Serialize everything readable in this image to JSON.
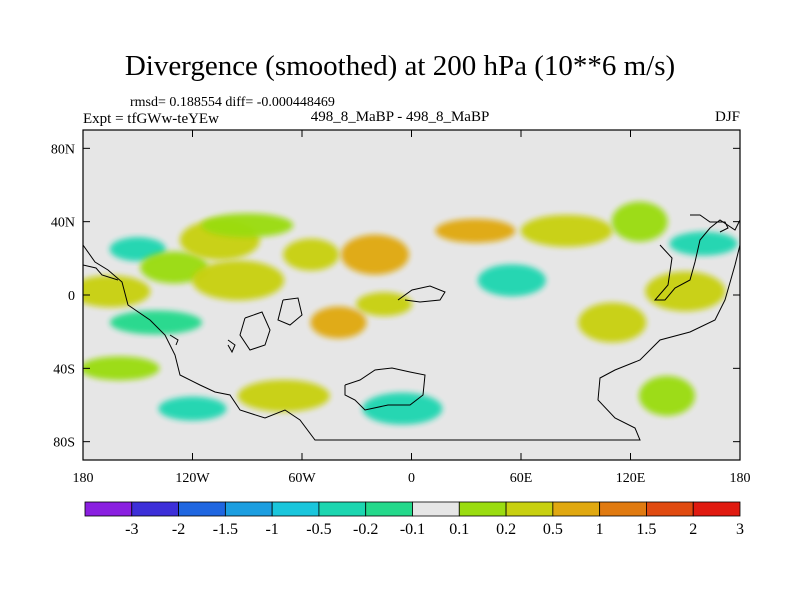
{
  "header": {
    "title": "Divergence (smoothed) at 200 hPa (10**6 m/s)",
    "stats": "rmsd= 0.188554 diff= -0.000448469",
    "experiment": "Expt = tfGWw-teYEw",
    "case": "498_8_MaBP - 498_8_MaBP",
    "season": "DJF"
  },
  "chart_data": {
    "type": "heatmap",
    "title": "Divergence (smoothed) at 200 hPa (10**6 m/s)",
    "projection": "cylindrical-equidistant",
    "xlim": [
      -180,
      180
    ],
    "ylim": [
      -90,
      90
    ],
    "x_ticks": [
      {
        "value": -180,
        "label": "180"
      },
      {
        "value": -120,
        "label": "120W"
      },
      {
        "value": -60,
        "label": "60W"
      },
      {
        "value": 0,
        "label": "0"
      },
      {
        "value": 60,
        "label": "60E"
      },
      {
        "value": 120,
        "label": "120E"
      },
      {
        "value": 180,
        "label": "180"
      }
    ],
    "y_ticks": [
      {
        "value": 80,
        "label": "80N"
      },
      {
        "value": 40,
        "label": "40N"
      },
      {
        "value": 0,
        "label": "0"
      },
      {
        "value": -40,
        "label": "40S"
      },
      {
        "value": -80,
        "label": "80S"
      }
    ],
    "colorbar": {
      "levels": [
        "-3",
        "-2",
        "-1.5",
        "-1",
        "-0.5",
        "-0.2",
        "-0.1",
        "0.1",
        "0.2",
        "0.5",
        "1",
        "1.5",
        "2",
        "3"
      ],
      "colors": [
        "#8a1fe0",
        "#3d2fd8",
        "#1f66e0",
        "#1c9ee0",
        "#1ac6dc",
        "#1cd6b0",
        "#24d98b",
        "#e6e6e6",
        "#9adc10",
        "#c8d010",
        "#e0a810",
        "#e07a10",
        "#e04a10",
        "#e01a10"
      ]
    },
    "features": [
      {
        "lon": -150,
        "lat": 25,
        "level": "-0.2"
      },
      {
        "lon": -130,
        "lat": 15,
        "level": "0.1"
      },
      {
        "lon": -105,
        "lat": 30,
        "level": "0.2"
      },
      {
        "lon": -90,
        "lat": 38,
        "level": "0.1"
      },
      {
        "lon": -55,
        "lat": 22,
        "level": "0.2"
      },
      {
        "lon": -20,
        "lat": 22,
        "level": "0.5"
      },
      {
        "lon": 35,
        "lat": 35,
        "level": "0.5"
      },
      {
        "lon": 85,
        "lat": 35,
        "level": "0.2"
      },
      {
        "lon": 125,
        "lat": 40,
        "level": "0.1"
      },
      {
        "lon": 160,
        "lat": 28,
        "level": "-0.2"
      },
      {
        "lon": -165,
        "lat": 2,
        "level": "0.2"
      },
      {
        "lon": -95,
        "lat": 8,
        "level": "0.2"
      },
      {
        "lon": -15,
        "lat": -5,
        "level": "0.2"
      },
      {
        "lon": 55,
        "lat": 8,
        "level": "-0.2"
      },
      {
        "lon": 150,
        "lat": 2,
        "level": "0.2"
      },
      {
        "lon": -140,
        "lat": -15,
        "level": "-0.1"
      },
      {
        "lon": -40,
        "lat": -15,
        "level": "0.5"
      },
      {
        "lon": 110,
        "lat": -15,
        "level": "0.2"
      },
      {
        "lon": -160,
        "lat": -40,
        "level": "0.1"
      },
      {
        "lon": -70,
        "lat": -55,
        "level": "0.2"
      },
      {
        "lon": 140,
        "lat": -55,
        "level": "0.1"
      },
      {
        "lon": -120,
        "lat": -62,
        "level": "-0.2"
      },
      {
        "lon": -5,
        "lat": -62,
        "level": "-0.2"
      }
    ]
  }
}
